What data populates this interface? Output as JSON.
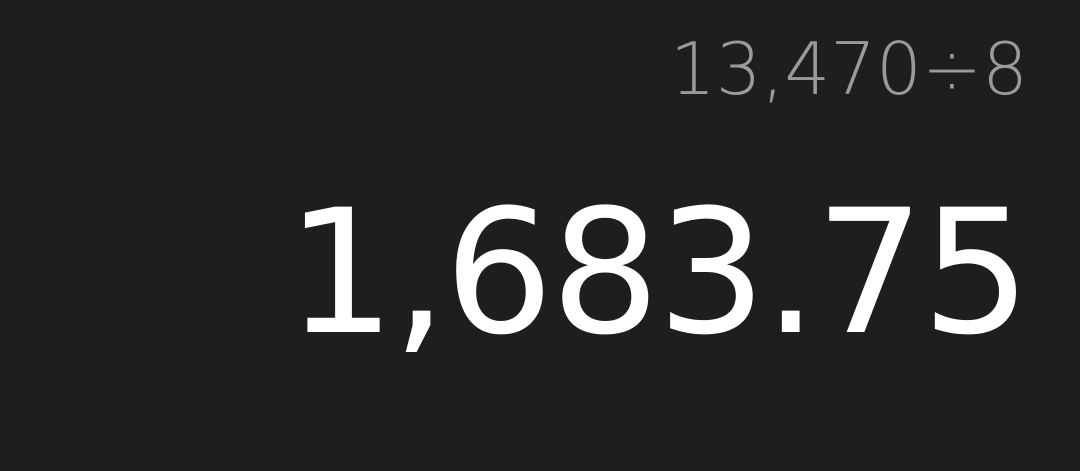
{
  "calculator": {
    "expression": "13,470÷8",
    "result": "1,683.75"
  },
  "colors": {
    "background": "#1d1e20",
    "expression_text": "#9a9a9c",
    "result_text": "#ffffff"
  }
}
